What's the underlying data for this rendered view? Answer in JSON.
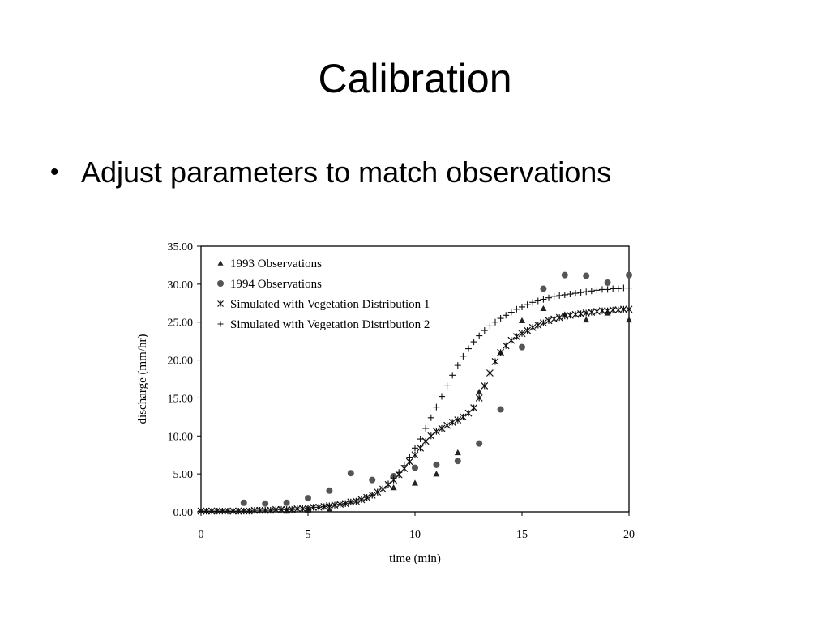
{
  "slide": {
    "title": "Calibration",
    "bullets": [
      {
        "symbol": "•",
        "text": "Adjust parameters to match observations"
      }
    ]
  },
  "chart_data": {
    "type": "scatter",
    "title": "",
    "xlabel": "time (min)",
    "ylabel": "discharge (mm/hr)",
    "xlim": [
      0,
      20
    ],
    "ylim": [
      0,
      35
    ],
    "xticks": [
      0,
      5,
      10,
      15,
      20
    ],
    "xtick_labels": [
      "0",
      "5",
      "10",
      "15",
      "20"
    ],
    "yticks": [
      0,
      5,
      10,
      15,
      20,
      25,
      30,
      35
    ],
    "ytick_labels": [
      "0.00",
      "5.00",
      "10.00",
      "15.00",
      "20.00",
      "25.00",
      "30.00",
      "35.00"
    ],
    "grid": false,
    "legend_position": "top-left",
    "series": [
      {
        "name": "1993 Observations",
        "marker": "triangle",
        "x": [
          4,
          5,
          6,
          9,
          10,
          11,
          12,
          13,
          14,
          15,
          16,
          17,
          18,
          19,
          20
        ],
        "y": [
          0.1,
          0.2,
          0.3,
          3.2,
          3.8,
          5.0,
          7.8,
          15.8,
          21.0,
          25.2,
          26.8,
          26.0,
          25.3,
          26.2,
          25.3
        ]
      },
      {
        "name": "1994 Observations",
        "marker": "circle",
        "x": [
          2,
          3,
          4,
          5,
          6,
          7,
          8,
          9,
          10,
          11,
          12,
          13,
          14,
          15,
          16,
          17,
          18,
          19,
          20
        ],
        "y": [
          1.2,
          1.1,
          1.2,
          1.8,
          2.8,
          5.1,
          4.2,
          4.7,
          5.8,
          6.2,
          6.7,
          9.0,
          13.5,
          21.7,
          29.4,
          31.2,
          31.1,
          30.2,
          31.2
        ]
      },
      {
        "name": "Simulated with Vegetation Distribution 1",
        "marker": "asterisk",
        "x": [
          0,
          0.25,
          0.5,
          0.75,
          1,
          1.25,
          1.5,
          1.75,
          2,
          2.25,
          2.5,
          2.75,
          3,
          3.25,
          3.5,
          3.75,
          4,
          4.25,
          4.5,
          4.75,
          5,
          5.25,
          5.5,
          5.75,
          6,
          6.25,
          6.5,
          6.75,
          7,
          7.25,
          7.5,
          7.75,
          8,
          8.25,
          8.5,
          8.75,
          9,
          9.25,
          9.5,
          9.75,
          10,
          10.25,
          10.5,
          10.75,
          11,
          11.25,
          11.5,
          11.75,
          12,
          12.25,
          12.5,
          12.75,
          13,
          13.25,
          13.5,
          13.75,
          14,
          14.25,
          14.5,
          14.75,
          15,
          15.25,
          15.5,
          15.75,
          16,
          16.25,
          16.5,
          16.75,
          17,
          17.25,
          17.5,
          17.75,
          18,
          18.25,
          18.5,
          18.75,
          19,
          19.25,
          19.5,
          19.75,
          20
        ],
        "y": [
          0.1,
          0.1,
          0.1,
          0.1,
          0.1,
          0.1,
          0.1,
          0.1,
          0.1,
          0.1,
          0.2,
          0.2,
          0.2,
          0.2,
          0.3,
          0.3,
          0.3,
          0.3,
          0.4,
          0.4,
          0.5,
          0.6,
          0.6,
          0.7,
          0.8,
          0.9,
          1.0,
          1.1,
          1.3,
          1.4,
          1.6,
          1.9,
          2.2,
          2.6,
          3.0,
          3.6,
          4.2,
          4.9,
          5.7,
          6.6,
          7.5,
          8.4,
          9.3,
          10.0,
          10.6,
          11.0,
          11.4,
          11.8,
          12.1,
          12.5,
          13.0,
          13.7,
          15.0,
          16.6,
          18.3,
          19.8,
          21.0,
          21.9,
          22.6,
          23.1,
          23.5,
          23.9,
          24.3,
          24.6,
          24.9,
          25.2,
          25.4,
          25.6,
          25.8,
          25.9,
          26.0,
          26.1,
          26.2,
          26.3,
          26.4,
          26.5,
          26.5,
          26.6,
          26.6,
          26.7,
          26.7
        ]
      },
      {
        "name": "Simulated with Vegetation Distribution 2",
        "marker": "plus",
        "x": [
          0,
          0.25,
          0.5,
          0.75,
          1,
          1.25,
          1.5,
          1.75,
          2,
          2.25,
          2.5,
          2.75,
          3,
          3.25,
          3.5,
          3.75,
          4,
          4.25,
          4.5,
          4.75,
          5,
          5.25,
          5.5,
          5.75,
          6,
          6.25,
          6.5,
          6.75,
          7,
          7.25,
          7.5,
          7.75,
          8,
          8.25,
          8.5,
          8.75,
          9,
          9.25,
          9.5,
          9.75,
          10,
          10.25,
          10.5,
          10.75,
          11,
          11.25,
          11.5,
          11.75,
          12,
          12.25,
          12.5,
          12.75,
          13,
          13.25,
          13.5,
          13.75,
          14,
          14.25,
          14.5,
          14.75,
          15,
          15.25,
          15.5,
          15.75,
          16,
          16.25,
          16.5,
          16.75,
          17,
          17.25,
          17.5,
          17.75,
          18,
          18.25,
          18.5,
          18.75,
          19,
          19.25,
          19.5,
          19.75,
          20
        ],
        "y": [
          0.1,
          0.1,
          0.1,
          0.1,
          0.1,
          0.1,
          0.1,
          0.1,
          0.1,
          0.1,
          0.2,
          0.2,
          0.2,
          0.2,
          0.3,
          0.3,
          0.3,
          0.3,
          0.4,
          0.4,
          0.5,
          0.6,
          0.6,
          0.7,
          0.8,
          0.9,
          1.0,
          1.1,
          1.3,
          1.4,
          1.6,
          1.9,
          2.2,
          2.6,
          3.1,
          3.7,
          4.4,
          5.2,
          6.1,
          7.2,
          8.4,
          9.6,
          11.0,
          12.4,
          13.8,
          15.2,
          16.6,
          18.0,
          19.3,
          20.5,
          21.5,
          22.4,
          23.2,
          23.9,
          24.5,
          25.0,
          25.5,
          25.9,
          26.3,
          26.7,
          27.0,
          27.3,
          27.6,
          27.8,
          28.0,
          28.2,
          28.4,
          28.5,
          28.6,
          28.7,
          28.8,
          28.9,
          29.0,
          29.1,
          29.2,
          29.3,
          29.3,
          29.4,
          29.4,
          29.5,
          29.5
        ]
      }
    ]
  }
}
